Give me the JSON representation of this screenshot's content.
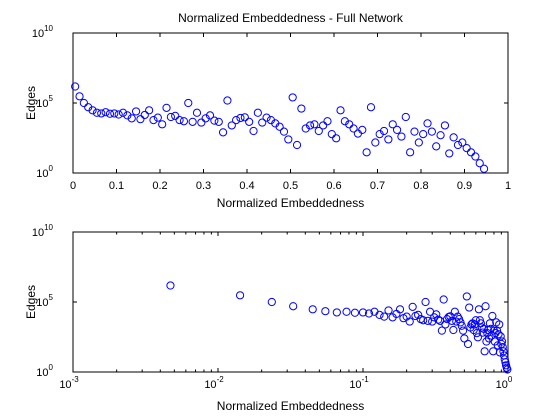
{
  "chart_data": [
    {
      "type": "scatter",
      "title": "Normalized Embeddedness - Full Network",
      "xlabel": "Normalized Embeddedness",
      "ylabel": "Edges",
      "xscale": "linear",
      "yscale": "log",
      "xlim": [
        0,
        1
      ],
      "ylim": [
        1,
        10000000000
      ],
      "grid": false,
      "marker": "circle",
      "color": "#0000ff",
      "xticks": [
        {
          "value": 0,
          "label": "0"
        },
        {
          "value": 0.1,
          "label": "0.1"
        },
        {
          "value": 0.2,
          "label": "0.2"
        },
        {
          "value": 0.3,
          "label": "0.3"
        },
        {
          "value": 0.4,
          "label": "0.4"
        },
        {
          "value": 0.5,
          "label": "0.5"
        },
        {
          "value": 0.6,
          "label": "0.6"
        },
        {
          "value": 0.7,
          "label": "0.7"
        },
        {
          "value": 0.8,
          "label": "0.8"
        },
        {
          "value": 0.9,
          "label": "0.9"
        },
        {
          "value": 1,
          "label": "1"
        }
      ],
      "yticks": [
        {
          "value": 1,
          "base": "10",
          "exp": "0"
        },
        {
          "value": 100000,
          "base": "10",
          "exp": "5"
        },
        {
          "value": 10000000000,
          "base": "10",
          "exp": "10"
        }
      ],
      "points": [
        [
          0.005,
          1500000
        ],
        [
          0.015,
          300000
        ],
        [
          0.025,
          100000
        ],
        [
          0.035,
          50000
        ],
        [
          0.045,
          30000
        ],
        [
          0.055,
          20000
        ],
        [
          0.065,
          18000
        ],
        [
          0.075,
          22000
        ],
        [
          0.085,
          17000
        ],
        [
          0.095,
          18000
        ],
        [
          0.105,
          15000
        ],
        [
          0.115,
          20000
        ],
        [
          0.125,
          13000
        ],
        [
          0.135,
          8000
        ],
        [
          0.145,
          25000
        ],
        [
          0.155,
          7000
        ],
        [
          0.165,
          14000
        ],
        [
          0.175,
          30000
        ],
        [
          0.185,
          6000
        ],
        [
          0.195,
          9000
        ],
        [
          0.205,
          3000
        ],
        [
          0.215,
          45000
        ],
        [
          0.225,
          10000
        ],
        [
          0.235,
          12000
        ],
        [
          0.245,
          6000
        ],
        [
          0.255,
          5000
        ],
        [
          0.265,
          100000
        ],
        [
          0.275,
          4500
        ],
        [
          0.285,
          20000
        ],
        [
          0.295,
          4000
        ],
        [
          0.305,
          8000
        ],
        [
          0.315,
          13000
        ],
        [
          0.325,
          5500
        ],
        [
          0.335,
          4500
        ],
        [
          0.345,
          800
        ],
        [
          0.355,
          150000
        ],
        [
          0.365,
          2500
        ],
        [
          0.375,
          6000
        ],
        [
          0.385,
          8500
        ],
        [
          0.395,
          9500
        ],
        [
          0.405,
          4500
        ],
        [
          0.415,
          1000
        ],
        [
          0.425,
          20000
        ],
        [
          0.435,
          4000
        ],
        [
          0.445,
          9000
        ],
        [
          0.455,
          6000
        ],
        [
          0.465,
          3500
        ],
        [
          0.475,
          2000
        ],
        [
          0.485,
          900
        ],
        [
          0.495,
          250
        ],
        [
          0.505,
          250000
        ],
        [
          0.515,
          100
        ],
        [
          0.525,
          40000
        ],
        [
          0.535,
          1500
        ],
        [
          0.545,
          2500
        ],
        [
          0.555,
          3000
        ],
        [
          0.565,
          1000
        ],
        [
          0.575,
          2500
        ],
        [
          0.585,
          5000
        ],
        [
          0.595,
          600
        ],
        [
          0.605,
          300
        ],
        [
          0.615,
          30000
        ],
        [
          0.625,
          5000
        ],
        [
          0.635,
          3000
        ],
        [
          0.645,
          1500
        ],
        [
          0.655,
          650
        ],
        [
          0.665,
          1200
        ],
        [
          0.675,
          30
        ],
        [
          0.685,
          50000
        ],
        [
          0.695,
          150
        ],
        [
          0.705,
          600
        ],
        [
          0.715,
          1000
        ],
        [
          0.725,
          250
        ],
        [
          0.735,
          3000
        ],
        [
          0.745,
          1200
        ],
        [
          0.755,
          400
        ],
        [
          0.765,
          10000
        ],
        [
          0.775,
          30
        ],
        [
          0.785,
          900
        ],
        [
          0.795,
          150
        ],
        [
          0.805,
          600
        ],
        [
          0.815,
          3500
        ],
        [
          0.825,
          900
        ],
        [
          0.835,
          80
        ],
        [
          0.845,
          500
        ],
        [
          0.855,
          2500
        ],
        [
          0.865,
          25
        ],
        [
          0.875,
          350
        ],
        [
          0.885,
          100
        ],
        [
          0.895,
          150
        ],
        [
          0.905,
          60
        ],
        [
          0.915,
          30
        ],
        [
          0.925,
          15
        ],
        [
          0.935,
          5
        ],
        [
          0.945,
          2
        ]
      ]
    },
    {
      "type": "scatter",
      "title": "",
      "xlabel": "Normalized Embeddedness",
      "ylabel": "Edges",
      "xscale": "log",
      "yscale": "log",
      "xlim": [
        0.001,
        1
      ],
      "ylim": [
        1,
        10000000000
      ],
      "grid": false,
      "marker": "circle",
      "color": "#0000ff",
      "xticks": [
        {
          "value": 0.001,
          "base": "10",
          "exp": "-3"
        },
        {
          "value": 0.01,
          "base": "10",
          "exp": "-2"
        },
        {
          "value": 0.1,
          "base": "10",
          "exp": "-1"
        },
        {
          "value": 1,
          "base": "10",
          "exp": "0"
        }
      ],
      "yticks": [
        {
          "value": 1,
          "base": "10",
          "exp": "0"
        },
        {
          "value": 100000,
          "base": "10",
          "exp": "5"
        },
        {
          "value": 10000000000,
          "base": "10",
          "exp": "10"
        }
      ],
      "points": [
        [
          0.0047,
          1500000
        ],
        [
          0.0142,
          300000
        ],
        [
          0.0235,
          100000
        ],
        [
          0.033,
          50000
        ],
        [
          0.045,
          30000
        ],
        [
          0.055,
          22000
        ],
        [
          0.066,
          18000
        ],
        [
          0.077,
          20000
        ],
        [
          0.088,
          17000
        ],
        [
          0.1,
          18000
        ],
        [
          0.11,
          15000
        ],
        [
          0.12,
          20000
        ],
        [
          0.13,
          12000
        ],
        [
          0.14,
          9000
        ],
        [
          0.15,
          25000
        ],
        [
          0.16,
          8000
        ],
        [
          0.17,
          14000
        ],
        [
          0.18,
          30000
        ],
        [
          0.19,
          7000
        ],
        [
          0.2,
          9000
        ],
        [
          0.21,
          4000
        ],
        [
          0.22,
          45000
        ],
        [
          0.23,
          10000
        ],
        [
          0.24,
          12000
        ],
        [
          0.25,
          6000
        ],
        [
          0.26,
          5000
        ],
        [
          0.27,
          100000
        ],
        [
          0.28,
          4500
        ],
        [
          0.29,
          20000
        ],
        [
          0.3,
          4000
        ],
        [
          0.31,
          8000
        ],
        [
          0.32,
          13000
        ],
        [
          0.33,
          5500
        ],
        [
          0.34,
          4500
        ],
        [
          0.35,
          900
        ],
        [
          0.36,
          150000
        ],
        [
          0.37,
          2500
        ],
        [
          0.38,
          6000
        ],
        [
          0.39,
          8500
        ],
        [
          0.4,
          9500
        ],
        [
          0.41,
          4500
        ],
        [
          0.42,
          1000
        ],
        [
          0.43,
          20000
        ],
        [
          0.44,
          4000
        ],
        [
          0.45,
          9000
        ],
        [
          0.46,
          6000
        ],
        [
          0.47,
          3500
        ],
        [
          0.48,
          2000
        ],
        [
          0.49,
          900
        ],
        [
          0.5,
          250
        ],
        [
          0.52,
          250000
        ],
        [
          0.53,
          100
        ],
        [
          0.54,
          40000
        ],
        [
          0.55,
          1500
        ],
        [
          0.56,
          2500
        ],
        [
          0.57,
          3000
        ],
        [
          0.58,
          1000
        ],
        [
          0.59,
          2500
        ],
        [
          0.6,
          5000
        ],
        [
          0.61,
          600
        ],
        [
          0.62,
          300
        ],
        [
          0.63,
          30000
        ],
        [
          0.64,
          5000
        ],
        [
          0.65,
          3000
        ],
        [
          0.66,
          1500
        ],
        [
          0.67,
          650
        ],
        [
          0.68,
          1200
        ],
        [
          0.69,
          30
        ],
        [
          0.7,
          50000
        ],
        [
          0.71,
          150
        ],
        [
          0.72,
          600
        ],
        [
          0.73,
          1000
        ],
        [
          0.74,
          250
        ],
        [
          0.75,
          3000
        ],
        [
          0.76,
          1200
        ],
        [
          0.77,
          400
        ],
        [
          0.78,
          10000
        ],
        [
          0.79,
          30
        ],
        [
          0.8,
          900
        ],
        [
          0.81,
          150
        ],
        [
          0.82,
          600
        ],
        [
          0.83,
          3500
        ],
        [
          0.84,
          900
        ],
        [
          0.85,
          80
        ],
        [
          0.86,
          500
        ],
        [
          0.87,
          2500
        ],
        [
          0.88,
          25
        ],
        [
          0.89,
          350
        ],
        [
          0.9,
          100
        ],
        [
          0.91,
          150
        ],
        [
          0.92,
          60
        ],
        [
          0.93,
          30
        ],
        [
          0.94,
          15
        ],
        [
          0.95,
          8
        ],
        [
          0.96,
          5
        ],
        [
          0.97,
          3
        ],
        [
          0.98,
          2
        ],
        [
          0.99,
          1.5
        ]
      ]
    }
  ]
}
